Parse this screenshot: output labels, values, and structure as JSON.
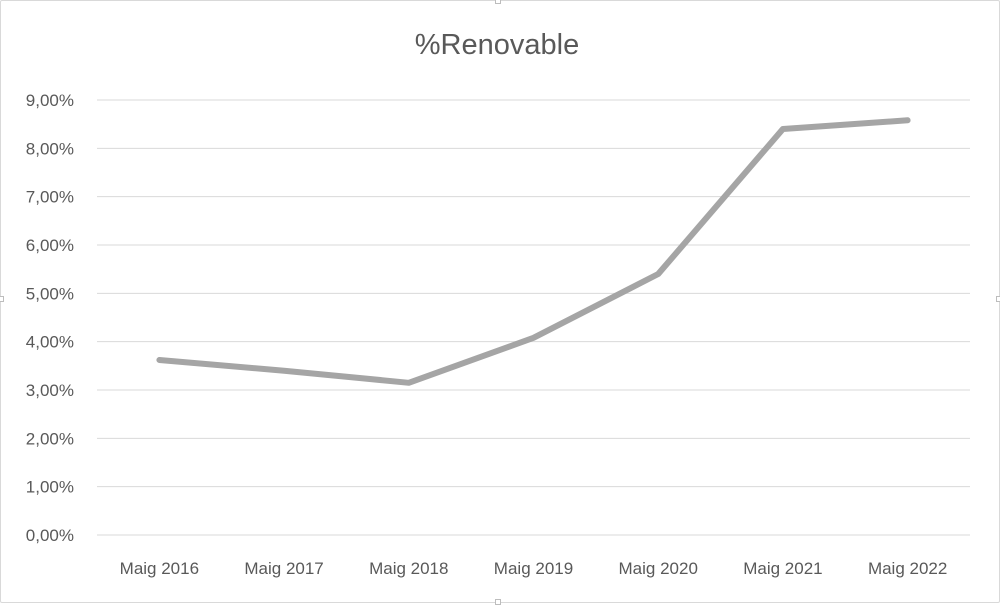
{
  "chart_data": {
    "type": "line",
    "title": "%Renovable",
    "xlabel": "",
    "ylabel": "",
    "categories": [
      "Maig 2016",
      "Maig 2017",
      "Maig 2018",
      "Maig 2019",
      "Maig 2020",
      "Maig 2021",
      "Maig 2022"
    ],
    "series": [
      {
        "values": [
          3.62,
          3.4,
          3.15,
          4.08,
          5.4,
          8.4,
          8.58
        ]
      }
    ],
    "ylim": [
      0,
      9
    ],
    "y_ticks": [
      "0,00%",
      "1,00%",
      "2,00%",
      "3,00%",
      "4,00%",
      "5,00%",
      "6,00%",
      "7,00%",
      "8,00%",
      "9,00%"
    ],
    "grid": true,
    "legend": "none",
    "colors": {
      "line": "#a5a5a5",
      "grid": "#d9d9d9",
      "text": "#595959"
    }
  }
}
